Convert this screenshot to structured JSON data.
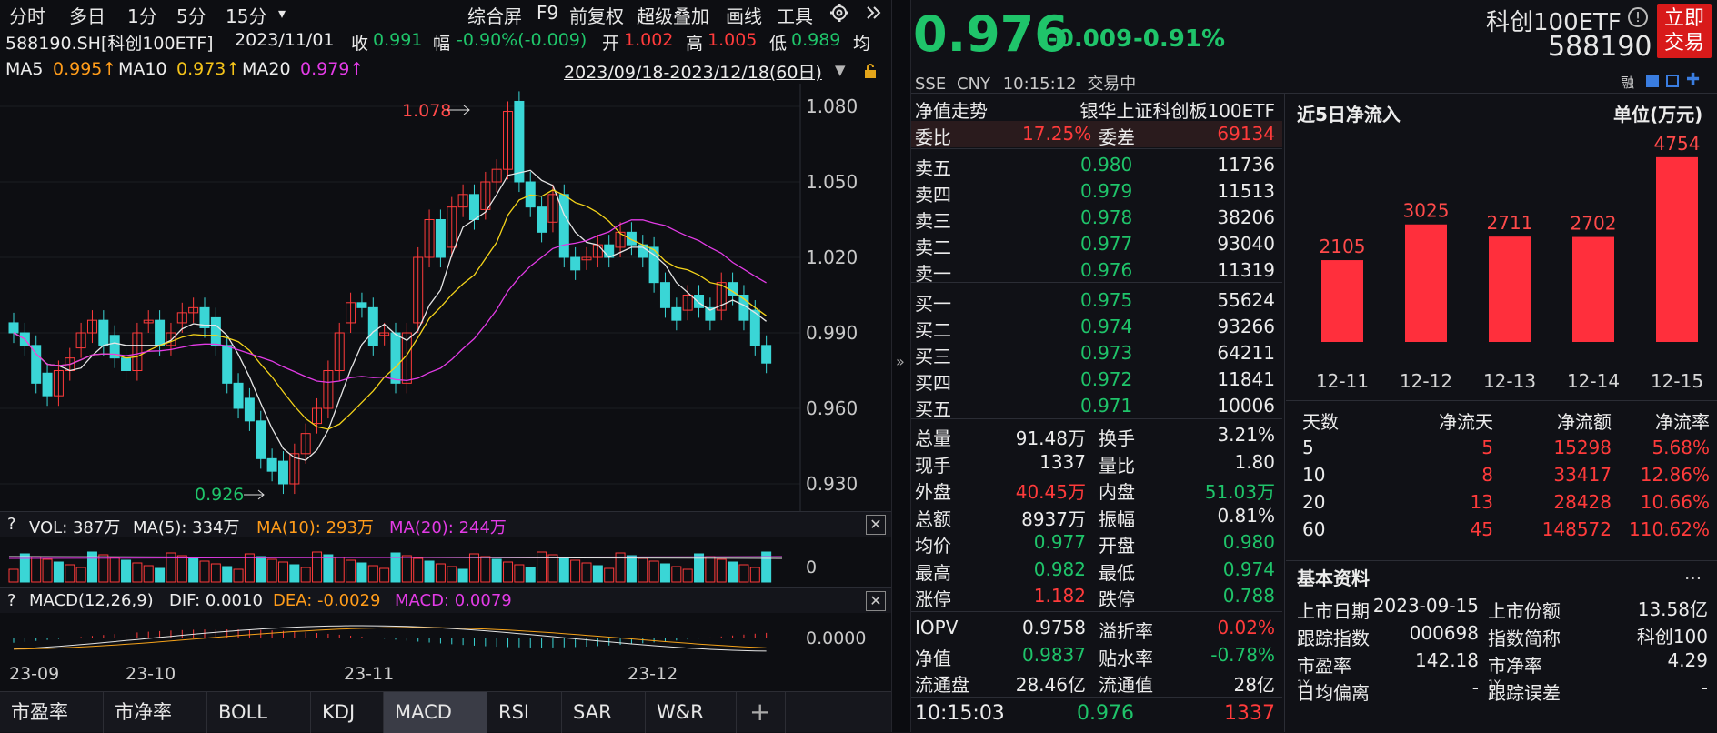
{
  "toolbar": {
    "items": [
      "分时",
      "多日",
      "1分",
      "5分",
      "15分"
    ],
    "dropdown": "▾",
    "right": [
      "综合屏",
      "F9",
      "前复权",
      "超级叠加",
      "画线",
      "工具"
    ]
  },
  "info": {
    "code": "588190.SH[科创100ETF]",
    "date": "2023/11/01",
    "close_label": "收",
    "close": "0.991",
    "amp_label": "幅",
    "amp": "-0.90%(-0.009)",
    "open_label": "开",
    "open": "1.002",
    "high_label": "高",
    "high": "1.005",
    "low_label": "低",
    "low": "0.989",
    "avg_label": "均"
  },
  "ma": {
    "ma5_label": "MA5",
    "ma5": "0.995↑",
    "ma10_label": "MA10",
    "ma10": "0.973↑",
    "ma20_label": "MA20",
    "ma20": "0.979↑",
    "range": "2023/09/18-2023/12/18(60日)"
  },
  "kchart": {
    "yticks": [
      "1.080",
      "1.050",
      "1.020",
      "0.990",
      "0.960",
      "0.930"
    ],
    "high_label": "1.078",
    "low_label": "0.926"
  },
  "vol_panel": {
    "q": "?",
    "label": "VOL: 387万",
    "ma5": "MA(5): 334万",
    "ma10": "MA(10): 293万",
    "ma20": "MA(20): 244万",
    "zero": "0",
    "close": "✕"
  },
  "macd_panel": {
    "q": "?",
    "label": "MACD(12,26,9)",
    "dif": "DIF: 0.0010",
    "dea": "DEA: -0.0029",
    "macd": "MACD: 0.0079",
    "zero": "0.0000",
    "close": "✕"
  },
  "xaxis": [
    "23-09",
    "23-10",
    "23-11",
    "23-12"
  ],
  "tabs": [
    "市盈率",
    "市净率",
    "BOLL",
    "KDJ",
    "MACD",
    "RSI",
    "SAR",
    "W&R"
  ],
  "tab_plus": "+",
  "quote": {
    "price": "0.976",
    "change": "-0.009",
    "pct": "-0.91%",
    "name": "科创100ETF",
    "code": "588190",
    "trade_btn_1": "立即",
    "trade_btn_2": "交易",
    "exchange": "SSE",
    "currency": "CNY",
    "time": "10:15:12",
    "status": "交易中",
    "rong": "融"
  },
  "orderbook": {
    "title": "净值走势",
    "fund_name": "银华上证科创板100ETF",
    "wb_label": "委比",
    "wb": "17.25%",
    "wc_label": "委差",
    "wc": "69134",
    "asks": [
      {
        "label": "卖五",
        "price": "0.980",
        "vol": "11736"
      },
      {
        "label": "卖四",
        "price": "0.979",
        "vol": "11513"
      },
      {
        "label": "卖三",
        "price": "0.978",
        "vol": "38206"
      },
      {
        "label": "卖二",
        "price": "0.977",
        "vol": "93040"
      },
      {
        "label": "卖一",
        "price": "0.976",
        "vol": "11319"
      }
    ],
    "bids": [
      {
        "label": "买一",
        "price": "0.975",
        "vol": "55624"
      },
      {
        "label": "买二",
        "price": "0.974",
        "vol": "93266"
      },
      {
        "label": "买三",
        "price": "0.973",
        "vol": "64211"
      },
      {
        "label": "买四",
        "price": "0.972",
        "vol": "11841"
      },
      {
        "label": "买五",
        "price": "0.971",
        "vol": "10006"
      }
    ]
  },
  "stats": [
    {
      "l1": "总量",
      "v1": "91.48万",
      "c1": "w",
      "l2": "换手",
      "v2": "3.21%",
      "c2": "w"
    },
    {
      "l1": "现手",
      "v1": "1337",
      "c1": "w",
      "l2": "量比",
      "v2": "1.80",
      "c2": "w"
    },
    {
      "l1": "外盘",
      "v1": "40.45万",
      "c1": "r",
      "l2": "内盘",
      "v2": "51.03万",
      "c2": "g"
    },
    {
      "l1": "总额",
      "v1": "8937万",
      "c1": "w",
      "l2": "振幅",
      "v2": "0.81%",
      "c2": "w"
    },
    {
      "l1": "均价",
      "v1": "0.977",
      "c1": "g",
      "l2": "开盘",
      "v2": "0.980",
      "c2": "g"
    },
    {
      "l1": "最高",
      "v1": "0.982",
      "c1": "g",
      "l2": "最低",
      "v2": "0.974",
      "c2": "g"
    },
    {
      "l1": "涨停",
      "v1": "1.182",
      "c1": "r",
      "l2": "跌停",
      "v2": "0.788",
      "c2": "g"
    }
  ],
  "stats2": [
    {
      "l1": "IOPV",
      "v1": "0.9758",
      "c1": "w",
      "l2": "溢折率",
      "v2": "0.02%",
      "c2": "r"
    },
    {
      "l1": "净值",
      "v1": "0.9837",
      "c1": "g",
      "l2": "贴水率",
      "v2": "-0.78%",
      "c2": "g"
    },
    {
      "l1": "流通盘",
      "v1": "28.46亿",
      "c1": "w",
      "l2": "流通值",
      "v2": "28亿",
      "c2": "w"
    }
  ],
  "last_trade": {
    "time": "10:15:03",
    "price": "0.976",
    "vol": "1337"
  },
  "flow": {
    "title": "近5日净流入",
    "unit": "单位(万元)"
  },
  "chart_data": {
    "type": "bar",
    "categories": [
      "12-11",
      "12-12",
      "12-13",
      "12-14",
      "12-15"
    ],
    "values": [
      2105,
      3025,
      2711,
      2702,
      4754
    ],
    "title": "近5日净流入",
    "ylabel": "单位(万元)",
    "ylim": [
      0,
      5000
    ]
  },
  "flow_table": {
    "headers": [
      "天数",
      "净流天",
      "净流额",
      "净流率"
    ],
    "rows": [
      [
        "5",
        "5",
        "15298",
        "5.68%"
      ],
      [
        "10",
        "8",
        "33417",
        "12.86%"
      ],
      [
        "20",
        "13",
        "28428",
        "10.66%"
      ],
      [
        "60",
        "45",
        "148572",
        "110.62%"
      ]
    ]
  },
  "basic": {
    "title": "基本资料",
    "more": "...",
    "rows": [
      {
        "l1": "上市日期",
        "v1": "2023-09-15",
        "l2": "上市份额",
        "v2": "13.58亿"
      },
      {
        "l1": "跟踪指数",
        "v1": "000698",
        "l2": "指数简称",
        "v2": "科创100"
      },
      {
        "l1": "市盈率",
        "v1": "142.18",
        "l2": "市净率",
        "v2": "4.29"
      },
      {
        "l1": "日均偏离",
        "sup1": "1Y",
        "v1": "-",
        "l2": "跟踪误差",
        "sup2": "1Y",
        "v2": "-"
      }
    ]
  },
  "colors": {
    "up": "#ff3b3b",
    "down": "#3ad6d6",
    "green": "#1fc46a",
    "ma5": "#e6e6e6",
    "ma10": "#f4d31a",
    "ma20": "#e33be6"
  }
}
